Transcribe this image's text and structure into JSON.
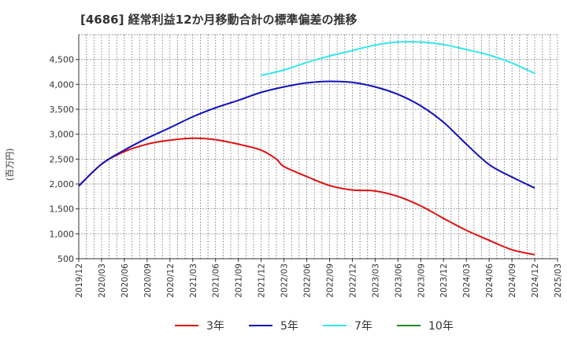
{
  "chart_data": {
    "type": "line",
    "title": "[4686]  経常利益12か月移動合計の標準偏差の推移",
    "ylabel": "(百万円)",
    "xlabel": "",
    "ylim": [
      500,
      5000
    ],
    "yticks": [
      500,
      1000,
      1500,
      2000,
      2500,
      3000,
      3500,
      4000,
      4500
    ],
    "ytick_labels": [
      "500",
      "1,000",
      "1,500",
      "2,000",
      "2,500",
      "3,000",
      "3,500",
      "4,000",
      "4,500"
    ],
    "xlim": [
      "2019-12",
      "2025-03"
    ],
    "xticks": [
      "2019/12",
      "2020/03",
      "2020/06",
      "2020/09",
      "2020/12",
      "2021/03",
      "2021/06",
      "2021/09",
      "2021/12",
      "2022/03",
      "2022/06",
      "2022/09",
      "2022/12",
      "2023/03",
      "2023/06",
      "2023/09",
      "2023/12",
      "2024/03",
      "2024/06",
      "2024/09",
      "2024/12",
      "2025/03"
    ],
    "grid": true,
    "legend_position": "bottom",
    "series": [
      {
        "name": "3年",
        "color": "#dd1111",
        "x": [
          "2019-12",
          "2020-03",
          "2020-06",
          "2020-09",
          "2020-12",
          "2021-03",
          "2021-06",
          "2021-09",
          "2021-12",
          "2022-02",
          "2022-03",
          "2022-06",
          "2022-09",
          "2022-12",
          "2023-03",
          "2023-06",
          "2023-09",
          "2023-12",
          "2024-03",
          "2024-06",
          "2024-09",
          "2024-12"
        ],
        "values": [
          1960,
          2400,
          2650,
          2800,
          2880,
          2920,
          2890,
          2800,
          2680,
          2500,
          2350,
          2150,
          1970,
          1880,
          1860,
          1750,
          1560,
          1310,
          1070,
          870,
          680,
          580
        ]
      },
      {
        "name": "5年",
        "color": "#1111bb",
        "x": [
          "2019-12",
          "2020-03",
          "2020-06",
          "2020-09",
          "2020-12",
          "2021-03",
          "2021-06",
          "2021-09",
          "2021-12",
          "2022-03",
          "2022-06",
          "2022-09",
          "2022-12",
          "2023-03",
          "2023-06",
          "2023-09",
          "2023-12",
          "2024-03",
          "2024-06",
          "2024-09",
          "2024-12"
        ],
        "values": [
          1960,
          2400,
          2680,
          2920,
          3130,
          3350,
          3530,
          3680,
          3840,
          3950,
          4030,
          4060,
          4040,
          3950,
          3800,
          3570,
          3240,
          2800,
          2390,
          2140,
          1920
        ]
      },
      {
        "name": "7年",
        "color": "#33e6ee",
        "x": [
          "2021-12",
          "2022-03",
          "2022-06",
          "2022-09",
          "2022-12",
          "2023-03",
          "2023-06",
          "2023-09",
          "2023-12",
          "2024-03",
          "2024-06",
          "2024-09",
          "2024-12"
        ],
        "values": [
          4180,
          4290,
          4440,
          4570,
          4680,
          4790,
          4850,
          4850,
          4800,
          4700,
          4590,
          4430,
          4220
        ]
      },
      {
        "name": "10年",
        "color": "#228822",
        "x": [],
        "values": []
      }
    ]
  }
}
